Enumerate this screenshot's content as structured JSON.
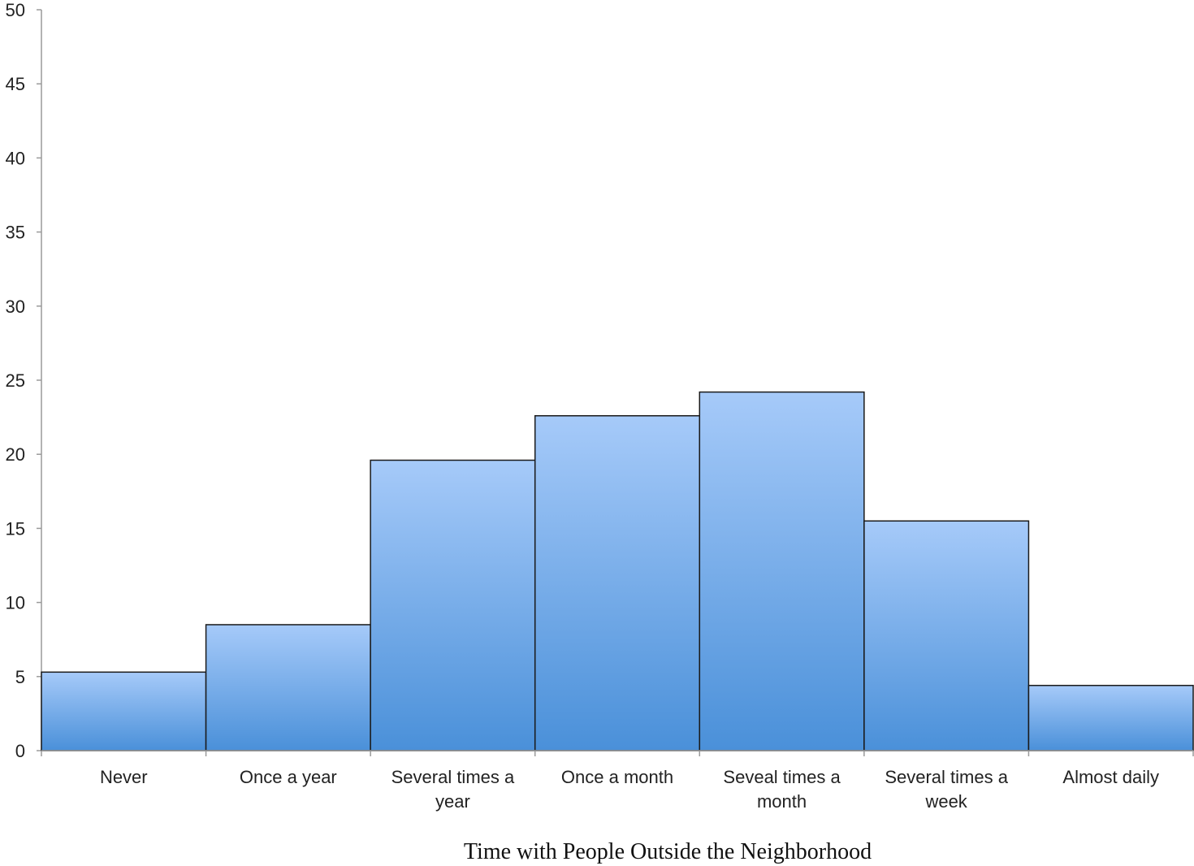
{
  "chart_data": {
    "type": "bar",
    "title": "",
    "xlabel": "Time with People Outside the Neighborhood",
    "ylabel": "",
    "categories": [
      [
        "Never"
      ],
      [
        "Once a year"
      ],
      [
        "Several times a",
        "year"
      ],
      [
        "Once a month"
      ],
      [
        "Seveal times a",
        "month"
      ],
      [
        "Several times a",
        "week"
      ],
      [
        "Almost daily"
      ]
    ],
    "values": [
      5.3,
      8.5,
      19.6,
      22.6,
      24.2,
      15.5,
      4.4
    ],
    "ylim": [
      0,
      50
    ],
    "yticks": [
      0,
      5,
      10,
      15,
      20,
      25,
      30,
      35,
      40,
      45,
      50
    ],
    "grid": false,
    "legend": "none"
  },
  "colors": {
    "bar_top": "#a6caf9",
    "bar_bottom": "#4a90d9",
    "bar_stroke": "#1a1a1a",
    "axis": "#9a9a9a"
  }
}
